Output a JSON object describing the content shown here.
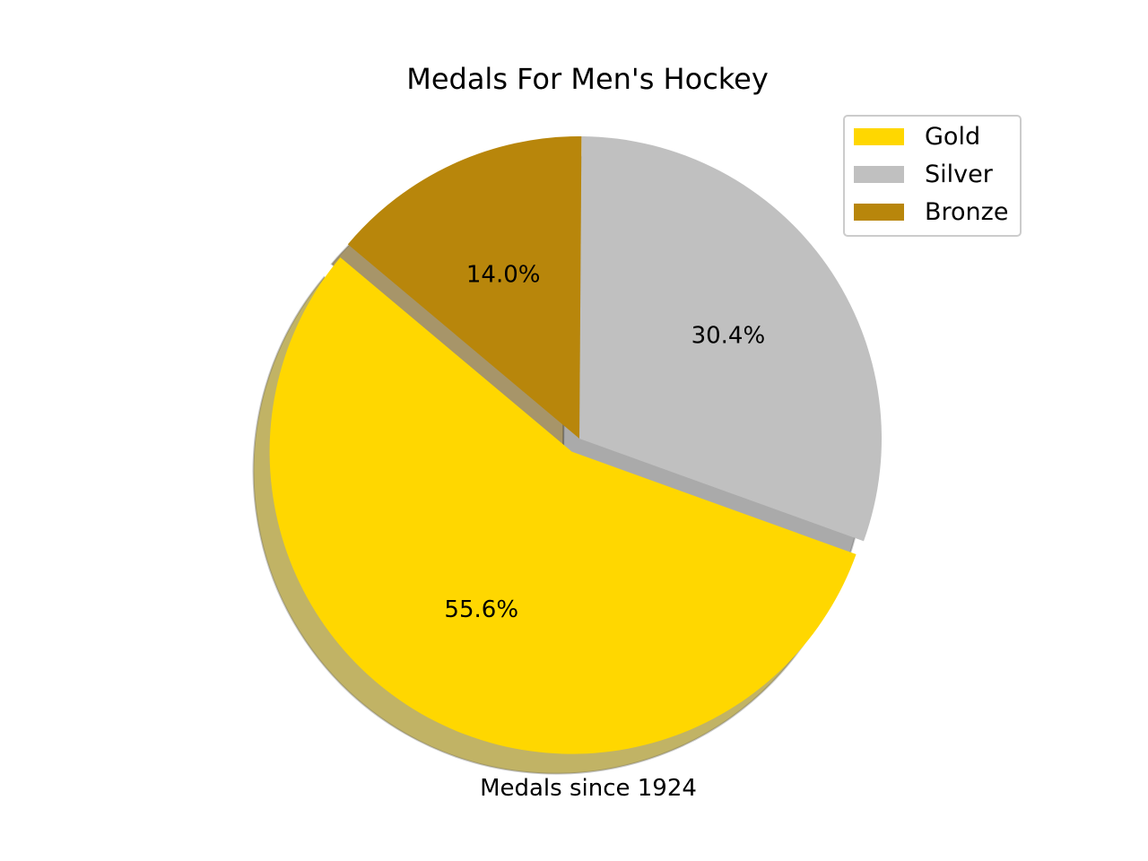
{
  "chart_data": {
    "type": "pie",
    "title": "Medals For Men's Hockey",
    "xlabel": "Medals since 1924",
    "categories": [
      "Gold",
      "Silver",
      "Bronze"
    ],
    "values": [
      55.6,
      30.4,
      14.0
    ],
    "autopct_labels": [
      "55.6%",
      "30.4%",
      "14.0%"
    ],
    "colors": [
      "#FFD700",
      "#C0C0C0",
      "#B8860B"
    ],
    "explode": [
      0.05,
      0.0,
      0.0
    ],
    "shadow": true,
    "start_angle_deg": 140,
    "legend": {
      "placement": "upper-right",
      "entries": [
        "Gold",
        "Silver",
        "Bronze"
      ]
    }
  }
}
